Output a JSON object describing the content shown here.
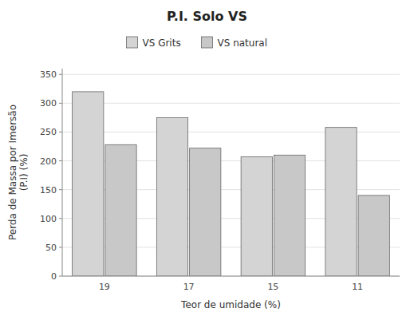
{
  "chart_data": {
    "type": "bar",
    "title": "P.I. Solo VS",
    "x_label": "Teor de umidade (%)",
    "y_label": "Perda de Massa por Imersão\n(P.I) (%)",
    "categories": [
      "19",
      "17",
      "15",
      "11"
    ],
    "series": [
      {
        "name": "VS Grits",
        "color": "#d4d4d4",
        "values": [
          320,
          275,
          207,
          258
        ]
      },
      {
        "name": "VS natural",
        "color": "#c8c8c8",
        "values": [
          228,
          222,
          210,
          140
        ]
      }
    ],
    "ylim": [
      0,
      360
    ],
    "yticks": [
      0,
      50,
      100,
      150,
      200,
      250,
      300,
      350
    ],
    "grid": true,
    "legend": "top"
  }
}
